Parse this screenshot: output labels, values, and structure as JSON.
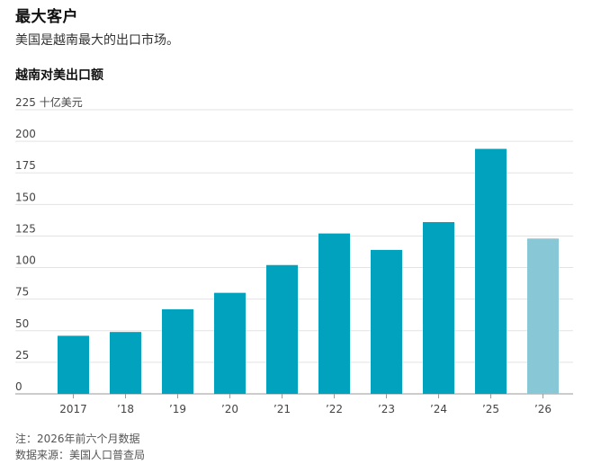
{
  "header": {
    "title": "最大客户",
    "subtitle": "美国是越南最大的出口市场。"
  },
  "footer": {
    "note": "注：2026年前六个月数据",
    "source": "数据来源：美国人口普查局"
  },
  "chart_data": {
    "type": "bar",
    "title": "越南对美出口额",
    "xlabel": "",
    "ylabel": "",
    "y_unit": "十亿美元",
    "categories": [
      "2017",
      "’18",
      "’19",
      "’20",
      "’21",
      "’22",
      "’23",
      "’24",
      "’25",
      "’26"
    ],
    "values": [
      46,
      49,
      67,
      80,
      102,
      127,
      114,
      136,
      194,
      123
    ],
    "partial": [
      false,
      false,
      false,
      false,
      false,
      false,
      false,
      false,
      false,
      true
    ],
    "ylim": [
      0,
      225
    ],
    "yticks": [
      0,
      25,
      50,
      75,
      100,
      125,
      150,
      175,
      200,
      225
    ],
    "ytick_labels": [
      "0",
      "25",
      "50",
      "75",
      "100",
      "125",
      "150",
      "175",
      "200",
      "225"
    ],
    "grid": true,
    "colors": {
      "bar": "#00a2bd",
      "bar_partial": "#88c7d6",
      "grid": "#e3e3e3",
      "baseline": "#999999"
    }
  }
}
